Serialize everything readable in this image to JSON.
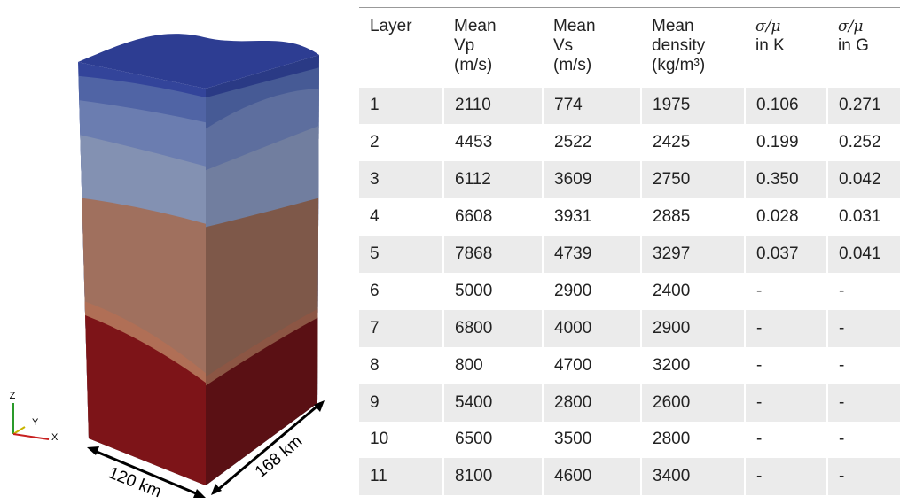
{
  "figure": {
    "axes": [
      "Z",
      "Y",
      "X"
    ],
    "dimensions": [
      "120 km",
      "168 km"
    ]
  },
  "table": {
    "header": [
      [
        "Layer"
      ],
      [
        "Mean",
        "Vp",
        "(m/s)"
      ],
      [
        "Mean",
        "Vs",
        "(m/s)"
      ],
      [
        "Mean",
        "density",
        "(kg/m³)"
      ],
      [
        "σ/μ",
        "in K"
      ],
      [
        "σ/μ",
        "in G"
      ]
    ],
    "rows": [
      [
        "1",
        "2110",
        "774",
        "1975",
        "0.106",
        "0.271"
      ],
      [
        "2",
        "4453",
        "2522",
        "2425",
        "0.199",
        "0.252"
      ],
      [
        "3",
        "6112",
        "3609",
        "2750",
        "0.350",
        "0.042"
      ],
      [
        "4",
        "6608",
        "3931",
        "2885",
        "0.028",
        "0.031"
      ],
      [
        "5",
        "7868",
        "4739",
        "3297",
        "0.037",
        "0.041"
      ],
      [
        "6",
        "5000",
        "2900",
        "2400",
        "-",
        "-"
      ],
      [
        "7",
        "6800",
        "4000",
        "2900",
        "-",
        "-"
      ],
      [
        "8",
        "800",
        "4700",
        "3200",
        "-",
        "-"
      ],
      [
        "9",
        "5400",
        "2800",
        "2600",
        "-",
        "-"
      ],
      [
        "10",
        "6500",
        "3500",
        "2800",
        "-",
        "-"
      ],
      [
        "11",
        "8100",
        "4600",
        "3400",
        "-",
        "-"
      ]
    ]
  }
}
